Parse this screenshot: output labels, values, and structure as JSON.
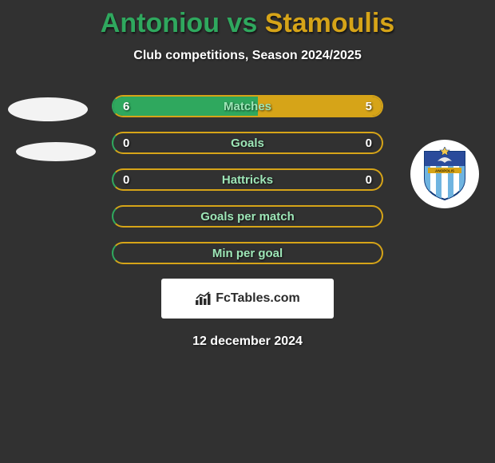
{
  "title": {
    "player1": "Antoniou",
    "vs": "vs",
    "player2": "Stamoulis",
    "color1": "#2fa85e",
    "color2": "#d6a418"
  },
  "subtitle": "Club competitions, Season 2024/2025",
  "stats": {
    "border_color_left": "#2fa85e",
    "border_color_right": "#d6a418",
    "label_color": "#9de6b7",
    "rows": [
      {
        "label": "Matches",
        "left": "6",
        "right": "5",
        "fill_left_pct": 54,
        "fill_right_pct": 46,
        "show_vals": true,
        "filled": true
      },
      {
        "label": "Goals",
        "left": "0",
        "right": "0",
        "fill_left_pct": 0,
        "fill_right_pct": 0,
        "show_vals": true,
        "filled": false
      },
      {
        "label": "Hattricks",
        "left": "0",
        "right": "0",
        "fill_left_pct": 0,
        "fill_right_pct": 0,
        "show_vals": true,
        "filled": false
      },
      {
        "label": "Goals per match",
        "left": "",
        "right": "",
        "fill_left_pct": 0,
        "fill_right_pct": 0,
        "show_vals": false,
        "filled": false
      },
      {
        "label": "Min per goal",
        "left": "",
        "right": "",
        "fill_left_pct": 0,
        "fill_right_pct": 0,
        "show_vals": false,
        "filled": false
      }
    ]
  },
  "brand": {
    "text": "FcTables.com",
    "icon_color": "#2b2b2b"
  },
  "date": "12 december 2024",
  "crest": {
    "stripe_color": "#6fb4e0",
    "stripe_bg": "#ffffff",
    "top_color": "#2a4b9b",
    "star_color": "#f4c84a",
    "border_color": "#123a7a",
    "label": "ANOPOLIS"
  },
  "colors": {
    "page_bg": "#313131",
    "avatar_bg": "#f3f3f3"
  }
}
